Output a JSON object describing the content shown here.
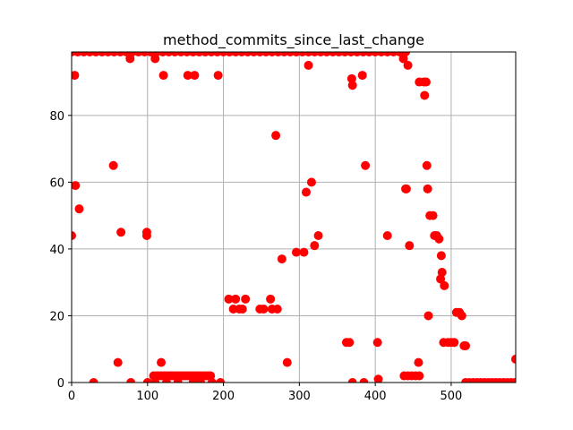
{
  "chart_data": {
    "type": "scatter",
    "title": "method_commits_since_last_change",
    "xlabel": "",
    "ylabel": "",
    "xlim": [
      0,
      585
    ],
    "ylim": [
      0,
      99
    ],
    "xticks": [
      0,
      100,
      200,
      300,
      400,
      500
    ],
    "yticks": [
      0,
      20,
      40,
      60,
      80
    ],
    "grid": true,
    "marker_color": "#ff0000",
    "series": [
      {
        "points": [
          [
            0,
            44
          ],
          [
            4,
            92
          ],
          [
            5,
            59
          ],
          [
            10,
            52
          ],
          [
            29,
            0
          ],
          [
            55,
            65
          ],
          [
            61,
            6
          ],
          [
            65,
            45
          ],
          [
            77,
            97
          ],
          [
            78,
            0
          ],
          [
            99,
            45
          ],
          [
            99,
            44
          ],
          [
            100,
            0
          ],
          [
            110,
            97
          ],
          [
            118,
            6
          ],
          [
            121,
            92
          ],
          [
            153,
            92
          ],
          [
            162,
            92
          ],
          [
            193,
            92
          ],
          [
            196,
            0
          ],
          [
            207,
            25
          ],
          [
            213,
            22
          ],
          [
            216,
            25
          ],
          [
            221,
            22
          ],
          [
            225,
            22
          ],
          [
            229,
            25
          ],
          [
            248,
            22
          ],
          [
            253,
            22
          ],
          [
            262,
            25
          ],
          [
            264,
            22
          ],
          [
            269,
            74
          ],
          [
            271,
            22
          ],
          [
            277,
            37
          ],
          [
            284,
            6
          ],
          [
            296,
            39
          ],
          [
            306,
            39
          ],
          [
            309,
            57
          ],
          [
            312,
            95
          ],
          [
            316,
            60
          ],
          [
            320,
            41
          ],
          [
            325,
            44
          ],
          [
            362,
            12
          ],
          [
            366,
            12
          ],
          [
            369,
            91
          ],
          [
            370,
            89
          ],
          [
            370,
            0
          ],
          [
            383,
            92
          ],
          [
            385,
            0
          ],
          [
            387,
            65
          ],
          [
            403,
            12
          ],
          [
            404,
            1
          ],
          [
            416,
            44
          ],
          [
            437,
            97
          ],
          [
            440,
            58
          ],
          [
            441,
            58
          ],
          [
            443,
            95
          ],
          [
            445,
            41
          ],
          [
            457,
            6
          ],
          [
            458,
            90
          ],
          [
            464,
            90
          ],
          [
            465,
            86
          ],
          [
            467,
            90
          ],
          [
            468,
            65
          ],
          [
            469,
            58
          ],
          [
            470,
            20
          ],
          [
            472,
            50
          ],
          [
            476,
            50
          ],
          [
            478,
            44
          ],
          [
            481,
            44
          ],
          [
            484,
            43
          ],
          [
            486,
            31
          ],
          [
            487,
            38
          ],
          [
            488,
            33
          ],
          [
            491,
            29
          ],
          [
            490,
            12
          ],
          [
            496,
            12
          ],
          [
            500,
            12
          ],
          [
            504,
            12
          ],
          [
            507,
            21
          ],
          [
            511,
            21
          ],
          [
            514,
            20
          ],
          [
            517,
            11
          ],
          [
            519,
            11
          ],
          [
            585,
            7
          ],
          [
            108,
            2
          ],
          [
            111,
            2
          ],
          [
            114,
            2
          ],
          [
            117,
            2
          ],
          [
            120,
            2
          ],
          [
            123,
            2
          ],
          [
            126,
            2
          ],
          [
            129,
            2
          ],
          [
            132,
            2
          ],
          [
            135,
            2
          ],
          [
            138,
            2
          ],
          [
            141,
            2
          ],
          [
            144,
            2
          ],
          [
            147,
            2
          ],
          [
            150,
            2
          ],
          [
            153,
            2
          ],
          [
            156,
            2
          ],
          [
            159,
            2
          ],
          [
            162,
            2
          ],
          [
            165,
            2
          ],
          [
            168,
            2
          ],
          [
            171,
            2
          ],
          [
            174,
            2
          ],
          [
            177,
            2
          ],
          [
            180,
            2
          ],
          [
            183,
            2
          ],
          [
            438,
            2
          ],
          [
            443,
            2
          ],
          [
            448,
            2
          ],
          [
            453,
            2
          ],
          [
            458,
            2
          ],
          [
            110,
            0
          ],
          [
            125,
            0
          ],
          [
            140,
            0
          ],
          [
            160,
            0
          ],
          [
            170,
            0
          ],
          [
            185,
            0
          ],
          [
            519,
            0
          ],
          [
            524,
            0
          ],
          [
            529,
            0
          ],
          [
            534,
            0
          ],
          [
            539,
            0
          ],
          [
            544,
            0
          ],
          [
            549,
            0
          ],
          [
            554,
            0
          ],
          [
            559,
            0
          ],
          [
            564,
            0
          ],
          [
            569,
            0
          ],
          [
            574,
            0
          ],
          [
            579,
            0
          ],
          [
            584,
            0
          ],
          [
            0,
            99
          ],
          [
            8,
            99
          ],
          [
            16,
            99
          ],
          [
            24,
            99
          ],
          [
            32,
            99
          ],
          [
            40,
            99
          ],
          [
            48,
            99
          ],
          [
            56,
            99
          ],
          [
            64,
            99
          ],
          [
            72,
            99
          ],
          [
            80,
            99
          ],
          [
            88,
            99
          ],
          [
            96,
            99
          ],
          [
            104,
            99
          ],
          [
            112,
            99
          ],
          [
            120,
            99
          ],
          [
            128,
            99
          ],
          [
            136,
            99
          ],
          [
            144,
            99
          ],
          [
            152,
            99
          ],
          [
            160,
            99
          ],
          [
            168,
            99
          ],
          [
            176,
            99
          ],
          [
            184,
            99
          ],
          [
            192,
            99
          ],
          [
            200,
            99
          ],
          [
            208,
            99
          ],
          [
            216,
            99
          ],
          [
            224,
            99
          ],
          [
            232,
            99
          ],
          [
            240,
            99
          ],
          [
            248,
            99
          ],
          [
            256,
            99
          ],
          [
            264,
            99
          ],
          [
            272,
            99
          ],
          [
            280,
            99
          ],
          [
            288,
            99
          ],
          [
            296,
            99
          ],
          [
            304,
            99
          ],
          [
            312,
            99
          ],
          [
            320,
            99
          ],
          [
            328,
            99
          ],
          [
            336,
            99
          ],
          [
            344,
            99
          ],
          [
            352,
            99
          ],
          [
            360,
            99
          ],
          [
            368,
            99
          ],
          [
            376,
            99
          ],
          [
            384,
            99
          ],
          [
            392,
            99
          ],
          [
            400,
            99
          ],
          [
            408,
            99
          ],
          [
            416,
            99
          ],
          [
            424,
            99
          ],
          [
            432,
            99
          ],
          [
            440,
            99
          ]
        ]
      }
    ]
  }
}
